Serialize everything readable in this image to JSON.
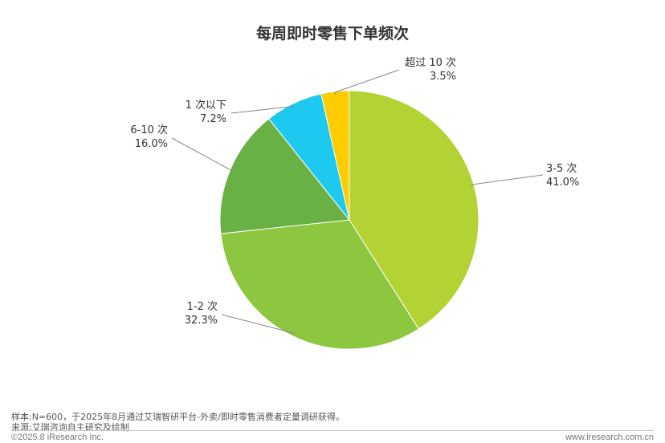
{
  "chart_data": {
    "type": "pie",
    "title": "每周即时零售下单频次",
    "slices": [
      {
        "label": "3-5 次",
        "value_label": "41.0%",
        "value": 41.0,
        "color": "#b3d335"
      },
      {
        "label": "1-2 次",
        "value_label": "32.3%",
        "value": 32.3,
        "color": "#8dc63f"
      },
      {
        "label": "6-10 次",
        "value_label": "16.0%",
        "value": 16.0,
        "color": "#69b045"
      },
      {
        "label": "1 次以下",
        "value_label": "7.2%",
        "value": 7.2,
        "color": "#1ec9f0"
      },
      {
        "label": "超过 10 次",
        "value_label": "3.5%",
        "value": 3.5,
        "color": "#ffcc00"
      }
    ],
    "legend": "none"
  },
  "footer": {
    "sample_note": "样本:N=600，于2025年8月通过艾瑞智研平台-外卖/即时零售消费者定量调研获得。",
    "source_note": "来源:艾瑞咨询自主研究及绘制",
    "copyright": "©2025.8 iResearch Inc.",
    "url": "www.iresearch.com.cn"
  }
}
